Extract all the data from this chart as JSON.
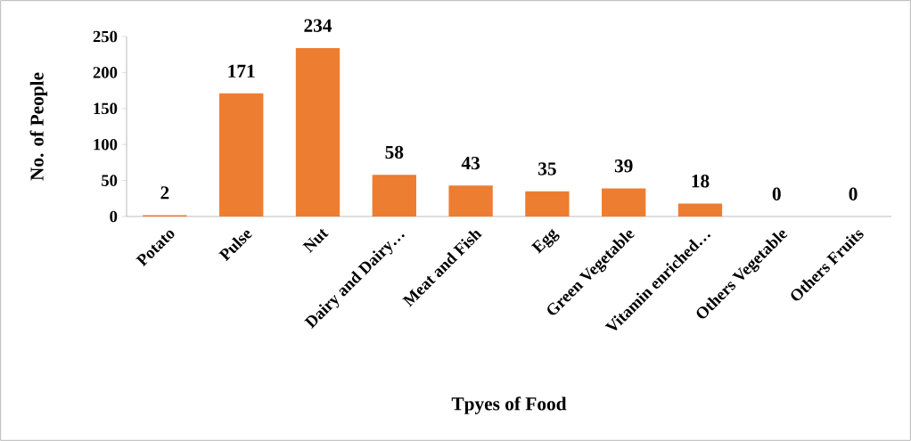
{
  "chart_data": {
    "type": "bar",
    "xlabel": "Tpyes of Food",
    "ylabel": "No. of People",
    "categories": [
      "Potato",
      "Pulse",
      "Nut",
      "Dairy and Dairy…",
      "Meat and Fish",
      "Egg",
      "Green Vegetable",
      "Vitamin enriched…",
      "Others Vegetable",
      "Others Fruits"
    ],
    "values": [
      2,
      171,
      234,
      58,
      43,
      35,
      39,
      18,
      0,
      0
    ],
    "color": "#ed7d31",
    "ylim": [
      0,
      250
    ],
    "yticks": [
      0,
      50,
      100,
      150,
      200,
      250
    ],
    "data_labels": true,
    "grid": false
  }
}
